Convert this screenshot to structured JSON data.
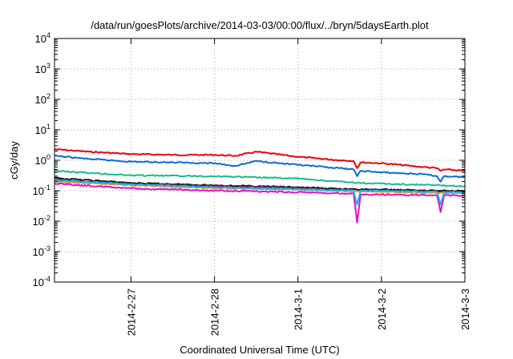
{
  "chart_data": {
    "type": "line",
    "title": "/data/run/goesPlots/archive/2014-03-03/00:00/flux/../bryn/5daysEarth.plot",
    "xlabel": "Coordinated Universal Time (UTC)",
    "ylabel": "cGy/day",
    "y_scale": "log",
    "ylim": [
      0.0001,
      10000
    ],
    "y_ticks": [
      {
        "value": 0.0001,
        "base": "10",
        "exp": "-4"
      },
      {
        "value": 0.001,
        "base": "10",
        "exp": "-3"
      },
      {
        "value": 0.01,
        "base": "10",
        "exp": "-2"
      },
      {
        "value": 0.1,
        "base": "10",
        "exp": "-1"
      },
      {
        "value": 1,
        "base": "10",
        "exp": "0"
      },
      {
        "value": 10,
        "base": "10",
        "exp": "1"
      },
      {
        "value": 100,
        "base": "10",
        "exp": "2"
      },
      {
        "value": 1000,
        "base": "10",
        "exp": "3"
      },
      {
        "value": 10000,
        "base": "10",
        "exp": "4"
      }
    ],
    "xlim": [
      "2014-02-26 02:00",
      "2014-03-03 00:00"
    ],
    "x_ticks": [
      "2014-2-27",
      "2014-2-28",
      "2014-3-1",
      "2014-3-2",
      "2014-3-3"
    ],
    "grid": true,
    "series": [
      {
        "color": "#e8000b",
        "x": [
          "2014-02-26 02:00",
          "2014-02-26 12:00",
          "2014-02-27 00:00",
          "2014-02-27 12:00",
          "2014-02-28 00:00",
          "2014-02-28 06:00",
          "2014-02-28 12:00",
          "2014-03-01 00:00",
          "2014-03-01 12:00",
          "2014-03-01 16:00",
          "2014-03-01 17:00",
          "2014-03-01 18:00",
          "2014-03-02 00:00",
          "2014-03-02 12:00",
          "2014-03-02 16:00",
          "2014-03-02 17:00",
          "2014-03-02 18:00",
          "2014-03-03 00:00"
        ],
        "values": [
          2.3,
          1.9,
          1.6,
          1.5,
          1.5,
          1.4,
          1.9,
          1.3,
          1.0,
          0.95,
          0.55,
          0.85,
          0.8,
          0.6,
          0.55,
          0.45,
          0.5,
          0.45
        ]
      },
      {
        "color": "#0a6ad8",
        "x": [
          "2014-02-26 02:00",
          "2014-02-26 12:00",
          "2014-02-27 00:00",
          "2014-02-27 12:00",
          "2014-02-28 00:00",
          "2014-02-28 06:00",
          "2014-02-28 12:00",
          "2014-03-01 00:00",
          "2014-03-01 12:00",
          "2014-03-01 16:00",
          "2014-03-01 17:00",
          "2014-03-01 18:00",
          "2014-03-02 00:00",
          "2014-03-02 12:00",
          "2014-03-02 16:00",
          "2014-03-02 17:00",
          "2014-03-02 18:00",
          "2014-03-03 00:00"
        ],
        "values": [
          1.4,
          1.1,
          0.9,
          0.85,
          0.8,
          0.65,
          0.95,
          0.7,
          0.55,
          0.5,
          0.3,
          0.45,
          0.4,
          0.35,
          0.3,
          0.2,
          0.3,
          0.28
        ]
      },
      {
        "color": "#1ab98c",
        "x": [
          "2014-02-26 02:00",
          "2014-02-27 00:00",
          "2014-02-28 00:00",
          "2014-03-01 00:00",
          "2014-03-01 17:00",
          "2014-03-02 00:00",
          "2014-03-02 17:00",
          "2014-03-03 00:00"
        ],
        "values": [
          0.45,
          0.32,
          0.3,
          0.25,
          0.18,
          0.17,
          0.15,
          0.14
        ]
      },
      {
        "color": "#1a1a1a",
        "x": [
          "2014-02-26 02:00",
          "2014-02-27 00:00",
          "2014-02-28 00:00",
          "2014-03-01 00:00",
          "2014-03-01 17:00",
          "2014-03-02 00:00",
          "2014-03-02 17:00",
          "2014-03-03 00:00"
        ],
        "values": [
          0.26,
          0.18,
          0.15,
          0.13,
          0.11,
          0.11,
          0.1,
          0.1
        ]
      },
      {
        "color": "#8b1a8b",
        "x": [
          "2014-02-26 02:00",
          "2014-02-27 00:00",
          "2014-02-28 00:00",
          "2014-03-01 00:00",
          "2014-03-01 17:00",
          "2014-03-02 00:00",
          "2014-03-02 17:00",
          "2014-03-03 00:00"
        ],
        "values": [
          0.23,
          0.16,
          0.14,
          0.12,
          0.1,
          0.1,
          0.09,
          0.09
        ]
      },
      {
        "color": "#f0a020",
        "x": [
          "2014-02-26 02:00",
          "2014-02-27 00:00",
          "2014-02-28 00:00",
          "2014-03-01 00:00",
          "2014-03-01 17:00",
          "2014-03-02 00:00",
          "2014-03-02 17:00",
          "2014-03-03 00:00"
        ],
        "values": [
          0.2,
          0.15,
          0.12,
          0.11,
          0.095,
          0.09,
          0.085,
          0.085
        ]
      },
      {
        "color": "#e010d0",
        "x": [
          "2014-02-26 02:00",
          "2014-02-27 00:00",
          "2014-02-28 00:00",
          "2014-03-01 00:00",
          "2014-03-01 16:00",
          "2014-03-01 17:00",
          "2014-03-01 18:00",
          "2014-03-02 00:00",
          "2014-03-02 16:00",
          "2014-03-02 17:00",
          "2014-03-02 18:00",
          "2014-03-03 00:00"
        ],
        "values": [
          0.17,
          0.12,
          0.1,
          0.09,
          0.08,
          0.009,
          0.075,
          0.075,
          0.07,
          0.02,
          0.07,
          0.07
        ]
      },
      {
        "color": "#19b7e0",
        "x": [
          "2014-02-26 02:00",
          "2014-02-27 00:00",
          "2014-02-28 00:00",
          "2014-03-01 00:00",
          "2014-03-01 16:00",
          "2014-03-01 17:00",
          "2014-03-01 18:00",
          "2014-03-02 00:00",
          "2014-03-02 16:00",
          "2014-03-02 17:00",
          "2014-03-02 18:00",
          "2014-03-03 00:00"
        ],
        "values": [
          0.22,
          0.16,
          0.13,
          0.11,
          0.1,
          0.035,
          0.1,
          0.1,
          0.09,
          0.035,
          0.09,
          0.09
        ]
      }
    ]
  }
}
